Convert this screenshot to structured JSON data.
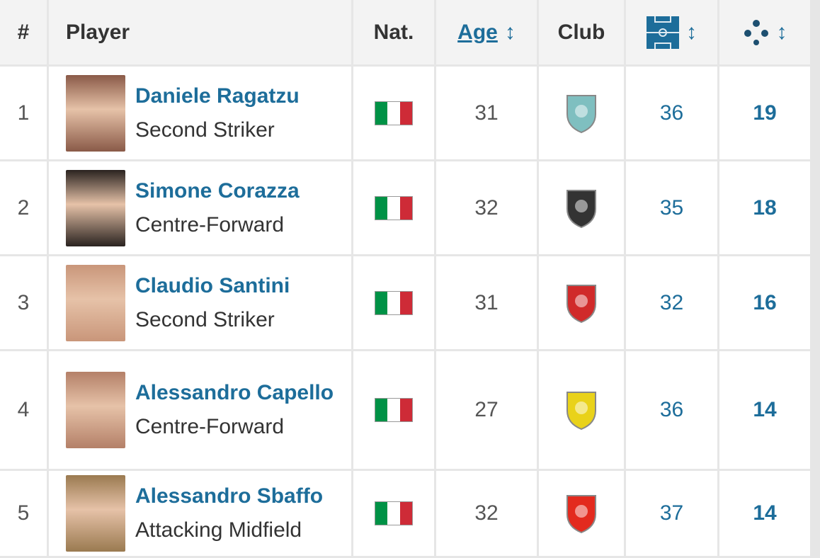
{
  "header": {
    "rank": "#",
    "player": "Player",
    "nat": "Nat.",
    "age": "Age",
    "club": "Club",
    "sort_glyph": "↕",
    "apps_icon": "pitch-icon",
    "goals_icon": "football-icon"
  },
  "colors": {
    "accent": "#1d6d9a",
    "italy_green": "#009246",
    "italy_red": "#ce2b37"
  },
  "rows": [
    {
      "rank": "1",
      "name": "Daniele Ragatzu",
      "position": "Second Striker",
      "nationality": "Italy",
      "age": "31",
      "club_crest": "#7fbfc0",
      "apps": "36",
      "goals": "19",
      "photo": "#8a5a48"
    },
    {
      "rank": "2",
      "name": "Simone Corazza",
      "position": "Centre-Forward",
      "nationality": "Italy",
      "age": "32",
      "club_crest": "#333333",
      "apps": "35",
      "goals": "18",
      "photo": "#2a2320"
    },
    {
      "rank": "3",
      "name": "Claudio Santini",
      "position": "Second Striker",
      "nationality": "Italy",
      "age": "31",
      "club_crest": "#d02a2a",
      "apps": "32",
      "goals": "16",
      "photo": "#c9967a"
    },
    {
      "rank": "4",
      "name": "Alessandro Capello",
      "position": "Centre-Forward",
      "nationality": "Italy",
      "age": "27",
      "club_crest": "#e9d21a",
      "apps": "36",
      "goals": "14",
      "photo": "#b48068"
    },
    {
      "rank": "5",
      "name": "Alessandro Sbaffo",
      "position": "Attacking Midfield",
      "nationality": "Italy",
      "age": "32",
      "club_crest": "#e32a1e",
      "apps": "37",
      "goals": "14",
      "photo": "#9a7a50"
    }
  ]
}
